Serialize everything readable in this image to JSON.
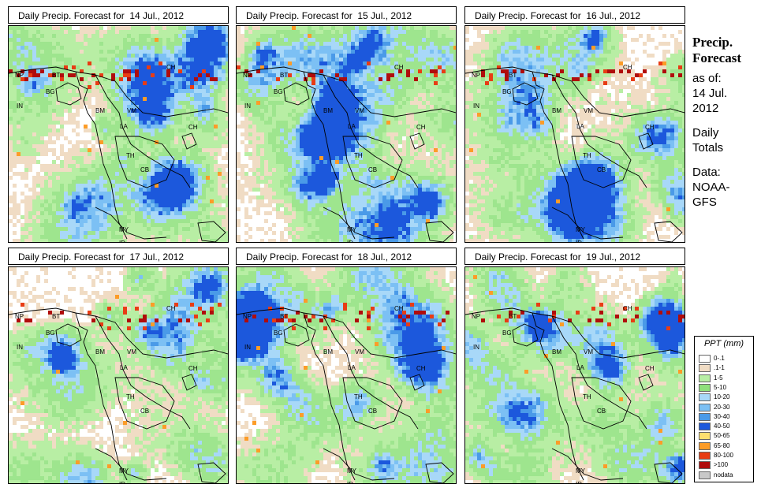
{
  "panels": [
    {
      "title": "Daily Precip. Forecast for  14 Jul., 2012"
    },
    {
      "title": "Daily Precip. Forecast for  15 Jul., 2012"
    },
    {
      "title": "Daily Precip. Forecast for  16 Jul., 2012"
    },
    {
      "title": "Daily Precip. Forecast for  17 Jul., 2012"
    },
    {
      "title": "Daily Precip. Forecast for  18 Jul., 2012"
    },
    {
      "title": "Daily Precip. Forecast for  19 Jul., 2012"
    }
  ],
  "map_labels": [
    "NP",
    "BT",
    "BG",
    "IN",
    "CH",
    "BM",
    "VM",
    "LA",
    "TH",
    "CB",
    "MY",
    "ID",
    "CH"
  ],
  "side": {
    "title_line1": "Precip.",
    "title_line2": "Forecast",
    "asof": "as of:",
    "date1": "14 Jul.",
    "date2": "2012",
    "daily1": "Daily",
    "daily2": "Totals",
    "data1": "Data:",
    "data2": "NOAA-",
    "data3": "GFS"
  },
  "legend": {
    "title": "PPT (mm)",
    "items": [
      {
        "label": "0-.1",
        "color": "#ffffff"
      },
      {
        "label": ".1-1",
        "color": "#f0dcc4"
      },
      {
        "label": "1-5",
        "color": "#b8eea4"
      },
      {
        "label": "5-10",
        "color": "#8fe07c"
      },
      {
        "label": "10-20",
        "color": "#a8d8f8"
      },
      {
        "label": "20-30",
        "color": "#7cc0f4"
      },
      {
        "label": "30-40",
        "color": "#4a9ae8"
      },
      {
        "label": "40-50",
        "color": "#1c58dc"
      },
      {
        "label": "50-65",
        "color": "#fce070"
      },
      {
        "label": "65-80",
        "color": "#fc9c28"
      },
      {
        "label": "80-100",
        "color": "#e83c14"
      },
      {
        "label": ">100",
        "color": "#b00c0c"
      },
      {
        "label": "nodata",
        "color": "#c8c8c8"
      }
    ]
  }
}
